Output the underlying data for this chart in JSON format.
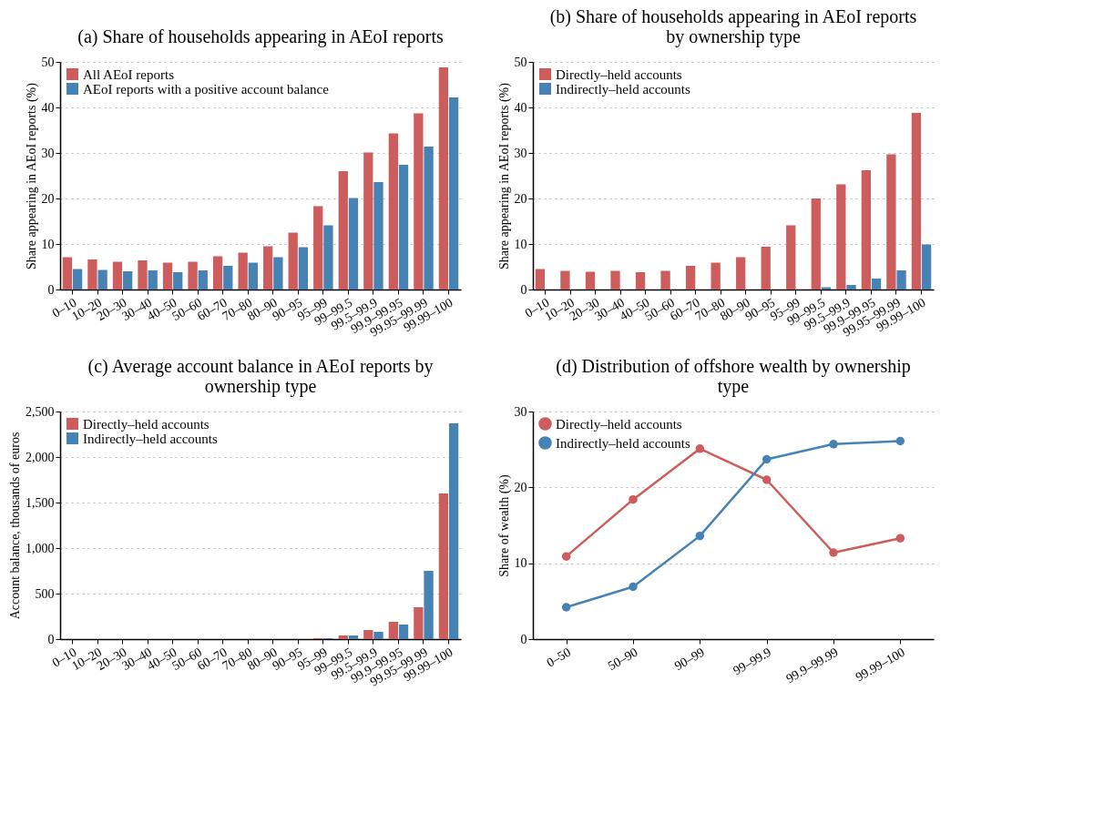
{
  "chart_data": [
    {
      "type": "bar",
      "title": "(a) Share of households appearing in AEoI reports",
      "ylabel": "Share appearing in AEoI reports (%)",
      "categories": [
        "0–10",
        "10–20",
        "20–30",
        "30–40",
        "40–50",
        "50–60",
        "60–70",
        "70–80",
        "80–90",
        "90–95",
        "95–99",
        "99–99.5",
        "99.5–99.9",
        "99.9–99.95",
        "99.95–99.99",
        "99.99–100"
      ],
      "series": [
        {
          "name": "All AEoI reports",
          "color": "#cd5c5c",
          "values": [
            7.1,
            6.6,
            6.1,
            6.4,
            5.9,
            6.1,
            7.3,
            8.1,
            9.5,
            12.5,
            18.3,
            26.0,
            30.1,
            34.3,
            38.7,
            48.8
          ]
        },
        {
          "name": "AEoI reports with a positive account balance",
          "color": "#4682b4",
          "values": [
            4.5,
            4.3,
            4.0,
            4.2,
            3.8,
            4.2,
            5.2,
            5.9,
            7.1,
            9.3,
            14.1,
            20.1,
            23.6,
            27.4,
            31.4,
            42.2
          ]
        }
      ],
      "ylim": [
        0,
        50
      ],
      "yticks": [
        0,
        10,
        20,
        30,
        40,
        50
      ],
      "grid": "y",
      "legend": "top left"
    },
    {
      "type": "bar",
      "title": "(b) Share of households appearing in AEoI reports by ownership type",
      "ylabel": "Share appearing in AEoI reports (%)",
      "categories": [
        "0–10",
        "10–20",
        "20–30",
        "30–40",
        "40–50",
        "50–60",
        "60–70",
        "70–80",
        "80–90",
        "90–95",
        "95–99",
        "99–99.5",
        "99.5–99.9",
        "99.9–99.95",
        "99.95–99.99",
        "99.99–100"
      ],
      "series": [
        {
          "name": "Directly–held accounts",
          "color": "#cd5c5c",
          "values": [
            4.5,
            4.1,
            3.9,
            4.1,
            3.8,
            4.1,
            5.2,
            5.9,
            7.1,
            9.4,
            14.1,
            20.0,
            23.1,
            26.2,
            29.7,
            38.8
          ]
        },
        {
          "name": "Indirectly–held accounts",
          "color": "#4682b4",
          "values": [
            0,
            0,
            0,
            0,
            0,
            0,
            0,
            0,
            0,
            0,
            null,
            0.5,
            1.0,
            2.4,
            4.2,
            9.9
          ]
        }
      ],
      "ylim": [
        0,
        50
      ],
      "yticks": [
        0,
        10,
        20,
        30,
        40,
        50
      ],
      "grid": "y",
      "legend": "top left"
    },
    {
      "type": "bar",
      "title": "(c) Average account balance in AEoI reports by ownership type",
      "ylabel": "Account balance, thousands of euros",
      "categories": [
        "0–10",
        "10–20",
        "20–30",
        "30–40",
        "40–50",
        "50–60",
        "60–70",
        "70–80",
        "80–90",
        "90–95",
        "95–99",
        "99–99.5",
        "99.5–99.9",
        "99.9–99.95",
        "99.95–99.99",
        "99.99–100"
      ],
      "series": [
        {
          "name": "Directly–held accounts",
          "color": "#cd5c5c",
          "values": [
            0,
            0,
            0,
            0,
            0,
            0,
            0,
            0,
            0,
            0,
            10,
            40,
            100,
            190,
            350,
            1600
          ]
        },
        {
          "name": "Indirectly–held accounts",
          "color": "#4682b4",
          "values": [
            0,
            0,
            0,
            0,
            0,
            0,
            0,
            0,
            0,
            0,
            10,
            40,
            80,
            160,
            750,
            2370
          ]
        }
      ],
      "ylim": [
        0,
        2500
      ],
      "yticks": [
        0,
        500,
        {
          "value": 1000,
          "label": "1,000"
        },
        {
          "value": 1500,
          "label": "1,500"
        },
        {
          "value": 2000,
          "label": "2,000"
        },
        {
          "value": 2500,
          "label": "2,500"
        }
      ],
      "grid": "y",
      "legend": "top left"
    },
    {
      "type": "line",
      "title": "(d) Distribution of offshore wealth by ownership type",
      "ylabel": "Share of wealth (%)",
      "categories": [
        "0–50",
        "50–90",
        "90–99",
        "99–99.9",
        "99.9–99.99",
        "99.99–100"
      ],
      "series": [
        {
          "name": "Directly–held accounts",
          "color": "#cd5c5c",
          "values": [
            10.9,
            18.4,
            25.1,
            21.0,
            11.4,
            13.3
          ]
        },
        {
          "name": "Indirectly–held accounts",
          "color": "#4682b4",
          "values": [
            4.2,
            6.9,
            13.6,
            23.7,
            25.7,
            26.1
          ]
        }
      ],
      "ylim": [
        0,
        30
      ],
      "yticks": [
        0,
        10,
        20,
        30
      ],
      "grid": "y",
      "legend": "top left",
      "marker": "circle",
      "line_style": "solid"
    }
  ]
}
